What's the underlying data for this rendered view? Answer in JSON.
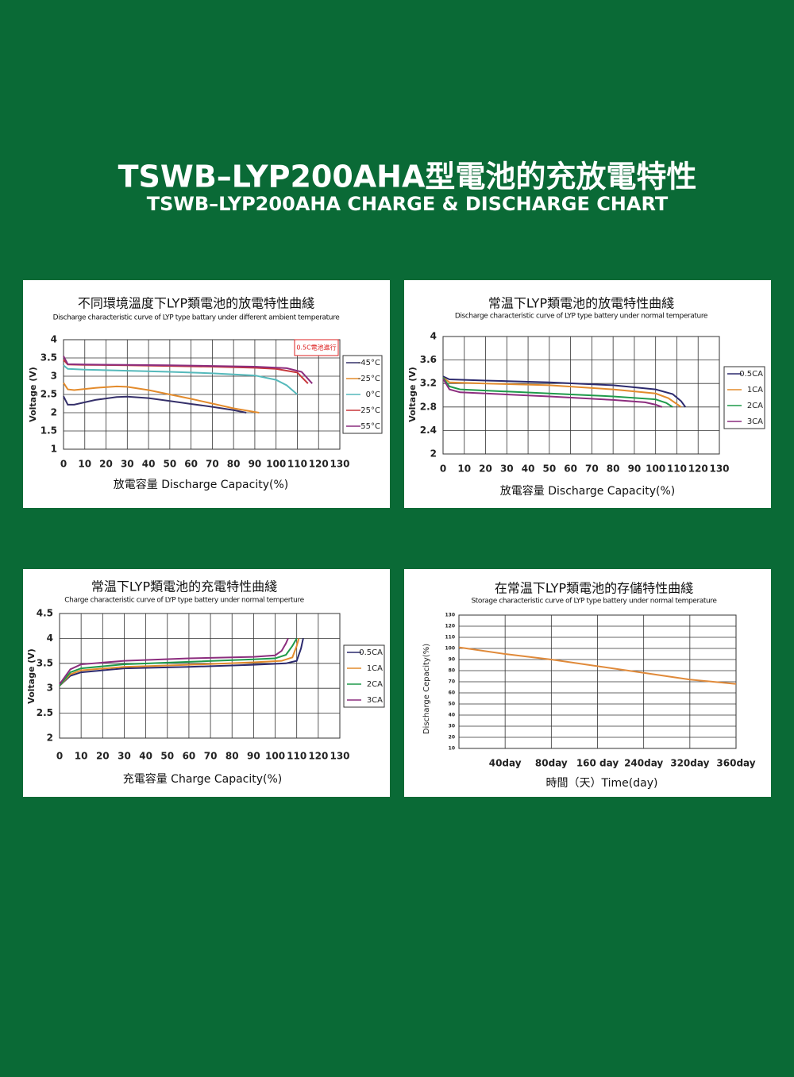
{
  "header": {
    "title": "TSWB–LYP200AHA型電池的充放電特性",
    "subtitle": "TSWB–LYP200AHA CHARGE & DISCHARGE CHART"
  },
  "chart_data": [
    {
      "type": "line",
      "title": "不同環境溫度下LYP類電池的放電特性曲綫",
      "subtitle": "Discharge characteristic curve of LYP type battary under different ambient temperature",
      "ylabel": "Voltage (V)",
      "xlabel": "放電容量 Discharge Capacity(%)",
      "annotation": "0.5C電池進行",
      "xlim": [
        0,
        130
      ],
      "xticks": [
        0,
        10,
        20,
        30,
        40,
        50,
        60,
        70,
        80,
        90,
        100,
        110,
        120,
        130
      ],
      "ylim": [
        1,
        4
      ],
      "yticks": [
        1,
        1.5,
        2,
        2.5,
        3,
        3.5,
        4
      ],
      "grid": true,
      "legend": "right",
      "series": [
        {
          "name": "-45°C",
          "color": "#35306a",
          "x": [
            0,
            2,
            5,
            15,
            25,
            30,
            40,
            50,
            60,
            70,
            80,
            86
          ],
          "values": [
            2.45,
            2.22,
            2.22,
            2.35,
            2.43,
            2.44,
            2.4,
            2.32,
            2.24,
            2.16,
            2.07,
            2.0
          ]
        },
        {
          "name": "-25°C",
          "color": "#e38b2c",
          "x": [
            0,
            2,
            5,
            15,
            25,
            30,
            40,
            50,
            60,
            70,
            80,
            92
          ],
          "values": [
            2.82,
            2.64,
            2.62,
            2.68,
            2.72,
            2.71,
            2.62,
            2.5,
            2.38,
            2.25,
            2.12,
            2.0
          ]
        },
        {
          "name": "0°C",
          "color": "#55b9bb",
          "x": [
            0,
            2,
            10,
            30,
            50,
            70,
            90,
            100,
            105,
            110
          ],
          "values": [
            3.3,
            3.2,
            3.18,
            3.15,
            3.12,
            3.08,
            3.02,
            2.9,
            2.75,
            2.5
          ]
        },
        {
          "name": "25°C",
          "color": "#c8373a",
          "x": [
            0,
            2,
            10,
            30,
            50,
            70,
            90,
            100,
            110,
            115
          ],
          "values": [
            3.45,
            3.32,
            3.31,
            3.3,
            3.28,
            3.26,
            3.23,
            3.2,
            3.1,
            2.8
          ]
        },
        {
          "name": "55°C",
          "color": "#8c2d7e",
          "x": [
            0,
            2,
            10,
            30,
            50,
            70,
            90,
            105,
            112,
            117
          ],
          "values": [
            3.55,
            3.33,
            3.32,
            3.31,
            3.3,
            3.28,
            3.26,
            3.22,
            3.12,
            2.8
          ]
        }
      ]
    },
    {
      "type": "line",
      "title": "常温下LYP類電池的放電特性曲綫",
      "subtitle": "Discharge characteristic curve of LYP type battery under normal temperature",
      "ylabel": "Voltage (V)",
      "xlabel": "放電容量 Discharge Capacity(%)",
      "xlim": [
        0,
        130
      ],
      "xticks": [
        0,
        10,
        20,
        30,
        40,
        50,
        60,
        70,
        80,
        90,
        100,
        110,
        120,
        130
      ],
      "ylim": [
        2,
        4
      ],
      "yticks": [
        2,
        2.4,
        2.8,
        3.2,
        3.6,
        4
      ],
      "grid": true,
      "legend": "right",
      "series": [
        {
          "name": "0.5CA",
          "color": "#2c2a6e",
          "x": [
            0,
            3,
            20,
            50,
            80,
            100,
            108,
            112,
            114
          ],
          "values": [
            3.32,
            3.27,
            3.25,
            3.22,
            3.17,
            3.1,
            3.02,
            2.9,
            2.8
          ]
        },
        {
          "name": "1CA",
          "color": "#e38b2c",
          "x": [
            0,
            3,
            20,
            50,
            80,
            100,
            106,
            110,
            112
          ],
          "values": [
            3.3,
            3.22,
            3.2,
            3.17,
            3.1,
            3.03,
            2.95,
            2.85,
            2.8
          ]
        },
        {
          "name": "2CA",
          "color": "#1e9a4a",
          "x": [
            0,
            3,
            8,
            20,
            50,
            80,
            100,
            105,
            108
          ],
          "values": [
            3.3,
            3.15,
            3.1,
            3.08,
            3.03,
            2.98,
            2.93,
            2.87,
            2.8
          ]
        },
        {
          "name": "3CA",
          "color": "#8c2d7e",
          "x": [
            0,
            3,
            8,
            20,
            50,
            80,
            95,
            100,
            103
          ],
          "values": [
            3.28,
            3.1,
            3.05,
            3.03,
            2.98,
            2.92,
            2.88,
            2.84,
            2.8
          ]
        }
      ]
    },
    {
      "type": "line",
      "title": "常温下LYP類電池的充電特性曲綫",
      "subtitle": "Charge characteristic curve of LYP type battery under normal temperture",
      "ylabel": "Voltage (V)",
      "xlabel": "充電容量 Charge Capacity(%)",
      "xlim": [
        0,
        130
      ],
      "xticks": [
        0,
        10,
        20,
        30,
        40,
        50,
        60,
        70,
        80,
        90,
        100,
        110,
        120,
        130
      ],
      "ylim": [
        2,
        4.5
      ],
      "yticks": [
        2,
        2.5,
        3,
        3.5,
        4,
        4.5
      ],
      "grid": true,
      "legend": "right",
      "series": [
        {
          "name": "0.5CA",
          "color": "#2c2a6e",
          "x": [
            0,
            5,
            10,
            30,
            60,
            90,
            105,
            110,
            112,
            113
          ],
          "values": [
            3.05,
            3.25,
            3.32,
            3.4,
            3.43,
            3.47,
            3.5,
            3.55,
            3.8,
            4.0
          ]
        },
        {
          "name": "1CA",
          "color": "#e38b2c",
          "x": [
            0,
            5,
            10,
            30,
            60,
            90,
            103,
            108,
            110,
            111
          ],
          "values": [
            3.05,
            3.28,
            3.36,
            3.43,
            3.47,
            3.52,
            3.55,
            3.62,
            3.85,
            4.0
          ]
        },
        {
          "name": "2CA",
          "color": "#1e9a4a",
          "x": [
            0,
            5,
            10,
            30,
            60,
            90,
            100,
            105,
            108,
            110
          ],
          "values": [
            3.05,
            3.32,
            3.4,
            3.48,
            3.53,
            3.58,
            3.6,
            3.67,
            3.85,
            4.0
          ]
        },
        {
          "name": "3CA",
          "color": "#8c2d7e",
          "x": [
            0,
            5,
            10,
            30,
            60,
            90,
            100,
            103,
            105,
            106
          ],
          "values": [
            3.08,
            3.38,
            3.48,
            3.55,
            3.6,
            3.63,
            3.66,
            3.75,
            3.9,
            4.0
          ]
        }
      ]
    },
    {
      "type": "line",
      "title": "在常温下LYP類電池的存儲特性曲綫",
      "subtitle": "Storage characteristic curve of LYP type battery under normal temperature",
      "ylabel": "Discharge Cepacity(%)",
      "xlabel": "時間（天）Time(day)",
      "categories": [
        null,
        "40day",
        "80day",
        "160 day",
        "240day",
        "320day",
        "360day"
      ],
      "values": [
        101,
        95,
        90,
        84,
        78,
        72,
        68
      ],
      "color": "#e08a3a",
      "ylim": [
        10,
        130
      ],
      "yticks": [
        10,
        20,
        30,
        40,
        50,
        60,
        70,
        80,
        90,
        100,
        110,
        120,
        130
      ],
      "grid": true
    }
  ]
}
